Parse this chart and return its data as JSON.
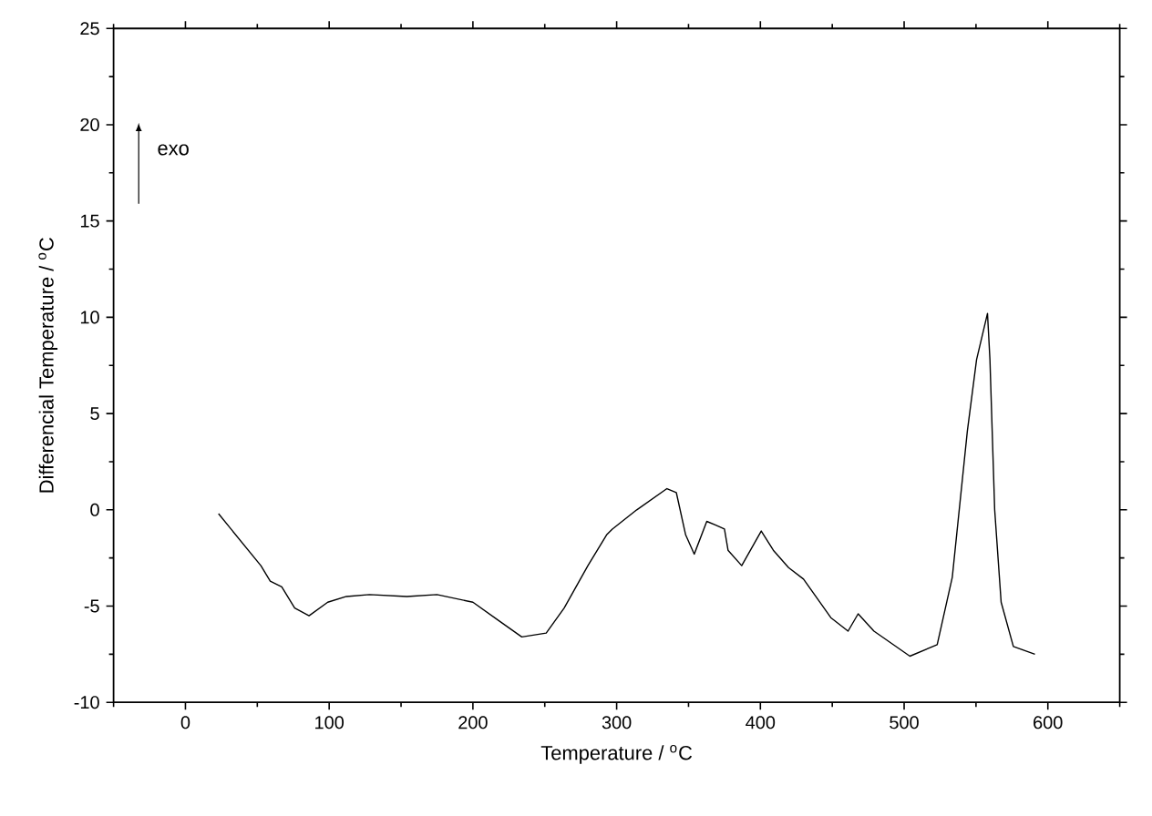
{
  "chart_data": {
    "type": "line",
    "xlabel": "Temperature / $^{o}$C",
    "ylabel": "Differencial Temperature / $^{o}$C",
    "annotations": [
      "exo"
    ],
    "xlim": [
      -50,
      650
    ],
    "ylim": [
      -10,
      25
    ],
    "xticks": [
      {
        "value": -50,
        "label": null
      },
      0,
      {
        "value": 50,
        "label": null
      },
      100,
      {
        "value": 150,
        "label": null
      },
      200,
      {
        "value": 250,
        "label": null
      },
      300,
      {
        "value": 350,
        "label": null
      },
      400,
      {
        "value": 450,
        "label": null
      },
      500,
      {
        "value": 550,
        "label": null
      },
      600,
      {
        "value": 650,
        "label": null
      }
    ],
    "yticks": [
      -10,
      {
        "value": -7.5,
        "label": null
      },
      -5,
      {
        "value": -2.5,
        "label": null
      },
      0,
      {
        "value": 2.5,
        "label": null
      },
      5,
      {
        "value": 7.5,
        "label": null
      },
      10,
      {
        "value": 12.5,
        "label": null
      },
      15,
      {
        "value": 17.5,
        "label": null
      },
      20,
      {
        "value": 22.5,
        "label": null
      },
      25
    ],
    "marker": "none",
    "line_style": "solid",
    "series": [
      {
        "color": "#000000",
        "x": [
          23,
          52.5,
          59,
          67,
          76,
          86,
          99,
          112,
          128,
          154,
          175,
          200,
          217,
          234,
          251,
          263.5,
          280,
          293,
          297,
          314,
          335,
          341.5,
          348,
          354,
          362.7,
          369,
          375,
          377.5,
          387,
          400.6,
          409,
          419.6,
          430,
          449,
          461,
          468,
          479,
          504,
          523,
          533.5,
          544,
          550.4,
          558,
          559.7,
          563,
          567.5,
          576,
          591
        ],
        "values": [
          -0.2,
          -2.9,
          -3.7,
          -4.0,
          -5.1,
          -5.5,
          -4.8,
          -4.5,
          -4.4,
          -4.5,
          -4.4,
          -4.8,
          -5.7,
          -6.6,
          -6.4,
          -5.1,
          -2.9,
          -1.3,
          -1.0,
          0.0,
          1.1,
          0.9,
          -1.3,
          -2.3,
          -0.6,
          -0.8,
          -1.0,
          -2.1,
          -2.9,
          -1.1,
          -2.1,
          -3.0,
          -3.6,
          -5.6,
          -6.3,
          -5.4,
          -6.3,
          -7.6,
          -7.0,
          -3.5,
          4.1,
          7.8,
          10.2,
          7.8,
          0.0,
          -4.8,
          -7.1,
          -7.5
        ]
      }
    ]
  }
}
